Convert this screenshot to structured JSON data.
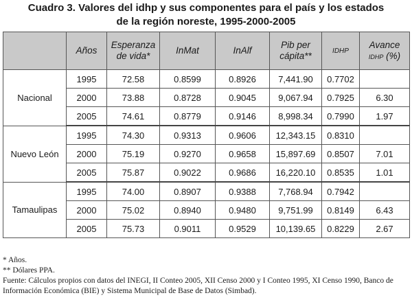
{
  "title": {
    "line1": "Cuadro 3. Valores del idhp y sus componentes para el país y los estados",
    "line2": "de la región noreste, 1995-2000-2005"
  },
  "table": {
    "headers": {
      "anos": "Años",
      "esperanza": [
        "Esperanza",
        "de vida*"
      ],
      "inmat": "InMat",
      "inalf": "InAlf",
      "pib": [
        "Pib per",
        "cápita**"
      ],
      "idhp": "IDHP",
      "avance": [
        "Avance",
        "IDHP",
        "(%)"
      ]
    },
    "groups": [
      {
        "region": "Nacional",
        "rows": [
          {
            "anio": "1995",
            "esperanza": "72.58",
            "inmat": "0.8599",
            "inalf": "0.8926",
            "pib": "7,441.90",
            "idhp": "0.7702",
            "avance": ""
          },
          {
            "anio": "2000",
            "esperanza": "73.88",
            "inmat": "0.8728",
            "inalf": "0.9045",
            "pib": "9,067.94",
            "idhp": "0.7925",
            "avance": "6.30"
          },
          {
            "anio": "2005",
            "esperanza": "74.61",
            "inmat": "0.8779",
            "inalf": "0.9146",
            "pib": "8,998.34",
            "idhp": "0.7990",
            "avance": "1.97"
          }
        ]
      },
      {
        "region": "Nuevo León",
        "rows": [
          {
            "anio": "1995",
            "esperanza": "74.30",
            "inmat": "0.9313",
            "inalf": "0.9606",
            "pib": "12,343.15",
            "idhp": "0.8310",
            "avance": ""
          },
          {
            "anio": "2000",
            "esperanza": "75.19",
            "inmat": "0.9270",
            "inalf": "0.9658",
            "pib": "15,897.69",
            "idhp": "0.8507",
            "avance": "7.01"
          },
          {
            "anio": "2005",
            "esperanza": "75.87",
            "inmat": "0.9022",
            "inalf": "0.9686",
            "pib": "16,220.10",
            "idhp": "0.8535",
            "avance": "1.01"
          }
        ]
      },
      {
        "region": "Tamaulipas",
        "rows": [
          {
            "anio": "1995",
            "esperanza": "74.00",
            "inmat": "0.8907",
            "inalf": "0.9388",
            "pib": "7,768.94",
            "idhp": "0.7942",
            "avance": ""
          },
          {
            "anio": "2000",
            "esperanza": "75.02",
            "inmat": "0.8940",
            "inalf": "0.9480",
            "pib": "9,751.99",
            "idhp": "0.8149",
            "avance": "6.43"
          },
          {
            "anio": "2005",
            "esperanza": "75.73",
            "inmat": "0.9011",
            "inalf": "0.9529",
            "pib": "10,139.65",
            "idhp": "0.8229",
            "avance": "2.67"
          }
        ]
      }
    ]
  },
  "notes": {
    "note1": "* Años.",
    "note2": "** Dólares PPA.",
    "source": "Fuente: Cálculos propios con datos del INEGI, II Conteo 2005, XII Censo 2000 y I Conteo 1995, XI Censo 1990, Banco de Información Económica (BIE) y Sistema Municipal de Base de Datos (Simbad)."
  },
  "colors": {
    "header_bg": "#c9c9c9",
    "border": "#555555",
    "text": "#1a1a1a"
  }
}
